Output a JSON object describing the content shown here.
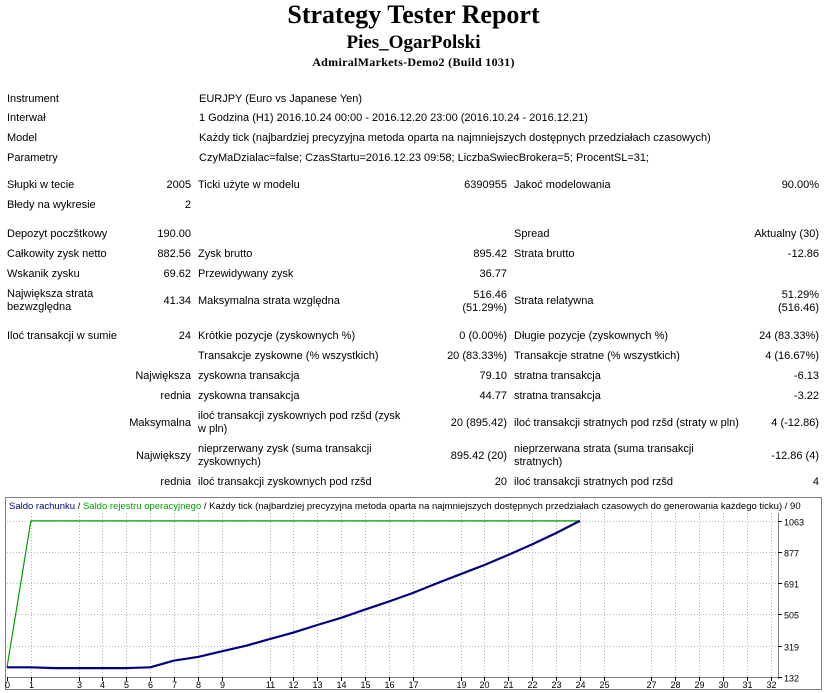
{
  "header": {
    "title": "Strategy Tester Report",
    "expert_name": "Pies_OgarPolski",
    "server_build": "AdmiralMarkets-Demo2 (Build 1031)"
  },
  "settings": {
    "instrument_label": "Instrument",
    "instrument_value": "EURJPY (Euro vs Japanese Yen)",
    "period_label": "Interwał",
    "period_value": "1 Godzina (H1) 2016.10.24 00:00 - 2016.12.20 23:00 (2016.10.24 - 2016.12.21)",
    "model_label": "Model",
    "model_value": "Każdy tick (najbardziej precyzyjna metoda oparta na najmniejszych dostępnych przedziałach czasowych)",
    "params_label": "Parametry",
    "params_value": "CzyMaDzialac=false; CzasStartu=2016.12.23 09:58; LiczbaSwiecBrokera=5; ProcentSL=31;"
  },
  "stats": {
    "bars_label": "Słupki w tecie",
    "bars_value": "2005",
    "ticks_label": "Ticki użyte w modelu",
    "ticks_value": "6390955",
    "quality_label": "Jakoć modelowania",
    "quality_value": "90.00%",
    "errors_label": "Błedy na wykresie",
    "errors_value": "2",
    "deposit_label": "Depozyt poczštkowy",
    "deposit_value": "190.00",
    "spread_label": "Spread",
    "spread_value": "Aktualny (30)",
    "net_label": "Całkowity zysk netto",
    "net_value": "882.56",
    "gross_profit_label": "Zysk brutto",
    "gross_profit_value": "895.42",
    "gross_loss_label": "Strata brutto",
    "gross_loss_value": "-12.86",
    "pf_label": "Wskanik zysku",
    "pf_value": "69.62",
    "expected_label": "Przewidywany zysk",
    "expected_value": "36.77",
    "maxdd_label": "Największa strata bezwzględna",
    "maxdd_value": "41.34",
    "maxdd_rel_label": "Maksymalna strata względna",
    "maxdd_rel_value_1": "516.46",
    "maxdd_rel_value_2": "(51.29%)",
    "reldd_label": "Strata relatywna",
    "reldd_value_1": "51.29%",
    "reldd_value_2": "(516.46)",
    "trades_label": "Iloć transakcji w sumie",
    "trades_value": "24",
    "short_label": "Krótkie pozycje (zyskownych %)",
    "short_value": "0 (0.00%)",
    "long_label": "Długie pozycje (zyskownych %)",
    "long_value": "24 (83.33%)",
    "profit_trades_label": "Transakcje zyskowne (% wszystkich)",
    "profit_trades_value": "20 (83.33%)",
    "loss_trades_label": "Transakcje stratne (% wszystkich)",
    "loss_trades_value": "4 (16.67%)",
    "largest_label": "Największa",
    "largest_profit_label": "zyskowna transakcja",
    "largest_profit_value": "79.10",
    "largest_loss_label": "stratna transakcja",
    "largest_loss_value": "-6.13",
    "average_label": "rednia",
    "avg_profit_label": "zyskowna transakcja",
    "avg_profit_value": "44.77",
    "avg_loss_label": "stratna transakcja",
    "avg_loss_value": "-3.22",
    "maximal_label": "Maksymalna",
    "max_cons_wins_label": "iloć transakcji zyskownych pod rzšd (zysk w pln)",
    "max_cons_wins_value": "20 (895.42)",
    "max_cons_losses_label": "iloć transakcji stratnych pod rzšd (straty w pln)",
    "max_cons_losses_value": "4 (-12.86)",
    "maximum_label": "Największy",
    "max_cons_profit_label": "nieprzerwany zysk (suma transakcji zyskownych)",
    "max_cons_profit_value": "895.42 (20)",
    "max_cons_loss_label": "nieprzerwana strata (suma transakcji stratnych)",
    "max_cons_loss_value": "-12.86 (4)",
    "avg_cons_label": "rednia",
    "avg_cons_wins_label": "iloć transakcji zyskownych pod rzšd",
    "avg_cons_wins_value": "20",
    "avg_cons_losses_label": "iloć transakcji stratnych pod rzšd",
    "avg_cons_losses_value": "4"
  },
  "chart_data": {
    "type": "line",
    "legend_balance": "Saldo rachunku",
    "legend_sep1": " / ",
    "legend_equity": "Saldo rejestru operacyjnego",
    "legend_rest": " / Każdy tick (najbardziej precyzyjna metoda oparta na najmniejszych dostępnych przedziałach czasowych do generowania każdego ticku) / 90",
    "colors": {
      "balance": "#000080",
      "equity": "#00a000",
      "grid": "#a0a0a0",
      "frame": "#808080"
    },
    "x_ticks": [
      0,
      1,
      3,
      4,
      5,
      6,
      7,
      8,
      9,
      11,
      12,
      13,
      14,
      15,
      16,
      17,
      19,
      20,
      21,
      22,
      23,
      24,
      25,
      27,
      28,
      29,
      30,
      31,
      32
    ],
    "xlim": [
      0,
      32.3
    ],
    "y_ticks": [
      132,
      319,
      505,
      691,
      877,
      1063
    ],
    "ylim": [
      132,
      1110
    ],
    "series": [
      {
        "name": "Saldo rachunku",
        "x": [
          0,
          1,
          2,
          3,
          4,
          5,
          6,
          7,
          8,
          9,
          10,
          11,
          12,
          13,
          14,
          15,
          16,
          17,
          18,
          19,
          20,
          21,
          22,
          23,
          24
        ],
        "y": [
          190,
          190,
          185,
          185,
          185,
          185,
          190,
          230,
          252,
          285,
          318,
          358,
          397,
          442,
          485,
          534,
          582,
          633,
          690,
          745,
          800,
          860,
          923,
          990,
          1063
        ]
      },
      {
        "name": "Saldo rejestru operacyjnego",
        "x": [
          0,
          1,
          24
        ],
        "y": [
          190,
          1063,
          1063
        ]
      }
    ]
  }
}
